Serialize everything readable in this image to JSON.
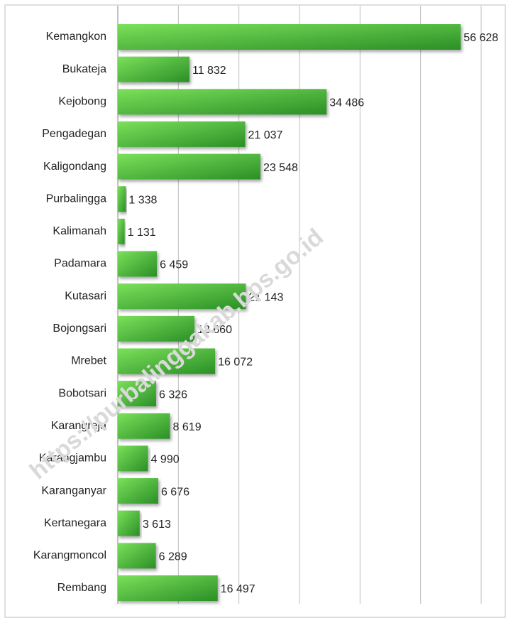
{
  "chart_data": {
    "type": "bar",
    "orientation": "horizontal",
    "categories": [
      "Kemangkon",
      "Bukateja",
      "Kejobong",
      "Pengadegan",
      "Kaligondang",
      "Purbalingga",
      "Kalimanah",
      "Padamara",
      "Kutasari",
      "Bojongsari",
      "Mrebet",
      "Bobotsari",
      "Karangreja",
      "Karangjambu",
      "Karanganyar",
      "Kertanegara",
      "Karangmoncol",
      "Rembang"
    ],
    "values": [
      56628,
      11832,
      34486,
      21037,
      23548,
      1338,
      1131,
      6459,
      21143,
      12660,
      16072,
      6326,
      8619,
      4990,
      6676,
      3613,
      6289,
      16497
    ],
    "value_labels": [
      "56 628",
      "11 832",
      "34 486",
      "21 037",
      "23 548",
      "1 338",
      "1 131",
      "6 459",
      "21 143",
      "12 660",
      "16 072",
      "6 326",
      "8 619",
      "4 990",
      "6 676",
      "3 613",
      "6 289",
      "16 497"
    ],
    "color": "#3cba2e",
    "xlim": [
      0,
      60000
    ],
    "xticks": [
      0,
      10000,
      20000,
      30000,
      40000,
      50000,
      60000
    ],
    "grid": true,
    "watermark": "https://purbalinggakab.bps.go.id"
  }
}
